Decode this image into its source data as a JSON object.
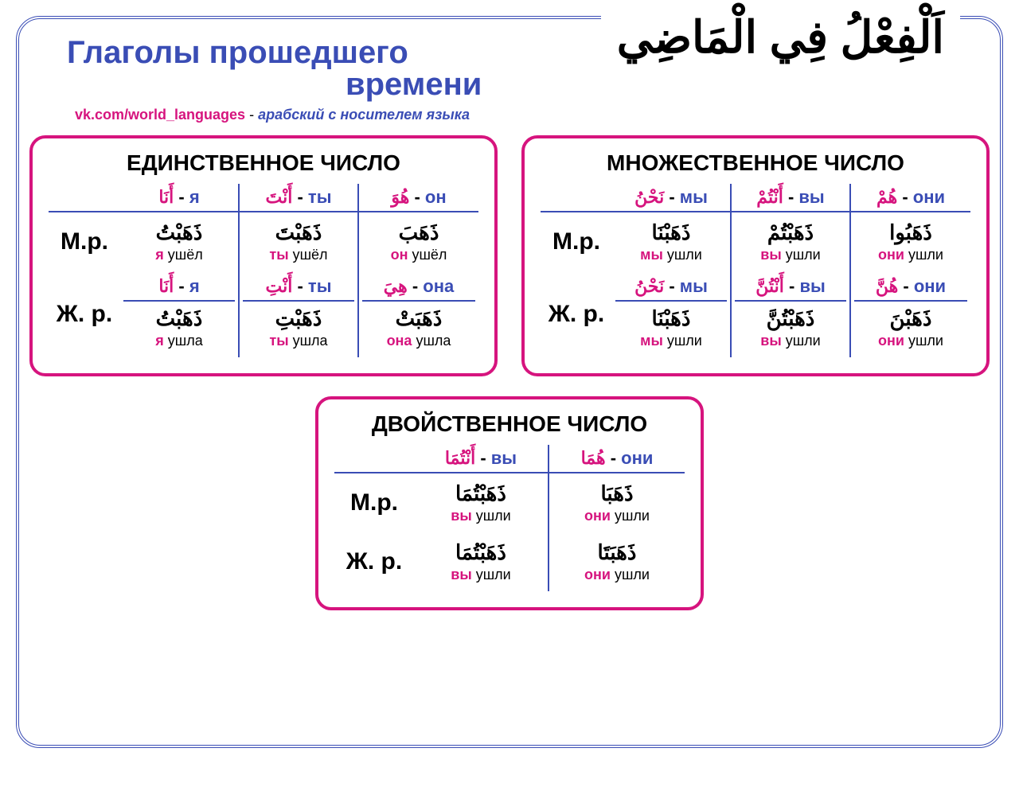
{
  "colors": {
    "blue": "#3a4db5",
    "magenta": "#d6147e",
    "black": "#000000",
    "white": "#ffffff"
  },
  "typography": {
    "title_fontsize": 40,
    "card_title_fontsize": 28,
    "arabic_title_fontsize": 56,
    "row_label_fontsize": 30,
    "cell_fontsize": 22,
    "trans_fontsize": 18
  },
  "layout": {
    "border_radius_outer": 30,
    "border_radius_card": 20,
    "card_border_width": 4
  },
  "arabic_title": "اَلْفِعْلُ فِي الْمَاضِي",
  "title_line1": "Глаголы прошедшего",
  "title_line2": "времени",
  "subtitle_link": "vk.com/world_languages",
  "subtitle_sep": " - ",
  "subtitle_desc": "арабский с носителем языка",
  "row_labels": {
    "m": "М.р.",
    "f": "Ж. р."
  },
  "singular": {
    "title": "ЕДИНСТВЕННОЕ ЧИСЛО",
    "headers": [
      {
        "ar": "أَنَا",
        "ru": "я"
      },
      {
        "ar": "أَنْتَ",
        "ru": "ты"
      },
      {
        "ar": "هُوَ",
        "ru": "он"
      }
    ],
    "m": [
      {
        "ar": "ذَهَبْتُ",
        "hl": "я",
        "rest": " ушёл"
      },
      {
        "ar": "ذَهَبْتَ",
        "hl": "ты",
        "rest": " ушёл"
      },
      {
        "ar": "ذَهَبَ",
        "hl": "он",
        "rest": " ушёл"
      }
    ],
    "f_headers": [
      {
        "ar": "أَنَا",
        "ru": "я"
      },
      {
        "ar": "أَنْتِ",
        "ru": "ты"
      },
      {
        "ar": "هِيَ",
        "ru": "она"
      }
    ],
    "f": [
      {
        "ar": "ذَهَبْتُ",
        "hl": "я",
        "rest": " ушла"
      },
      {
        "ar": "ذَهَبْتِ",
        "hl": "ты",
        "rest": " ушла"
      },
      {
        "ar": "ذَهَبَتْ",
        "hl": "она",
        "rest": " ушла"
      }
    ]
  },
  "plural": {
    "title": "МНОЖЕСТВЕННОЕ ЧИСЛО",
    "headers": [
      {
        "ar": "نَحْنُ",
        "ru": "мы"
      },
      {
        "ar": "أَنْتُمْ",
        "ru": "вы"
      },
      {
        "ar": "هُمْ",
        "ru": "они"
      }
    ],
    "m": [
      {
        "ar": "ذَهَبْنَا",
        "hl": "мы",
        "rest": " ушли"
      },
      {
        "ar": "ذَهَبْتُمْ",
        "hl": "вы",
        "rest": " ушли"
      },
      {
        "ar": "ذَهَبُوا",
        "hl": "они",
        "rest": " ушли"
      }
    ],
    "f_headers": [
      {
        "ar": "نَحْنُ",
        "ru": "мы"
      },
      {
        "ar": "أَنْتُنَّ",
        "ru": "вы"
      },
      {
        "ar": "هُنَّ",
        "ru": "они"
      }
    ],
    "f": [
      {
        "ar": "ذَهَبْنَا",
        "hl": "мы",
        "rest": " ушли"
      },
      {
        "ar": "ذَهَبْتُنَّ",
        "hl": "вы",
        "rest": " ушли"
      },
      {
        "ar": "ذَهَبْنَ",
        "hl": "они",
        "rest": " ушли"
      }
    ]
  },
  "dual": {
    "title": "ДВОЙСТВЕННОЕ ЧИСЛО",
    "headers": [
      {
        "ar": "أَنْتُمَا",
        "ru": "вы"
      },
      {
        "ar": "هُمَا",
        "ru": "они"
      }
    ],
    "m": [
      {
        "ar": "ذَهَبْتُمَا",
        "hl": "вы",
        "rest": " ушли"
      },
      {
        "ar": "ذَهَبَا",
        "hl": "они",
        "rest": " ушли"
      }
    ],
    "f": [
      {
        "ar": "ذَهَبْتُمَا",
        "hl": "вы",
        "rest": " ушли"
      },
      {
        "ar": "ذَهَبَتَا",
        "hl": "они",
        "rest": " ушли"
      }
    ]
  }
}
